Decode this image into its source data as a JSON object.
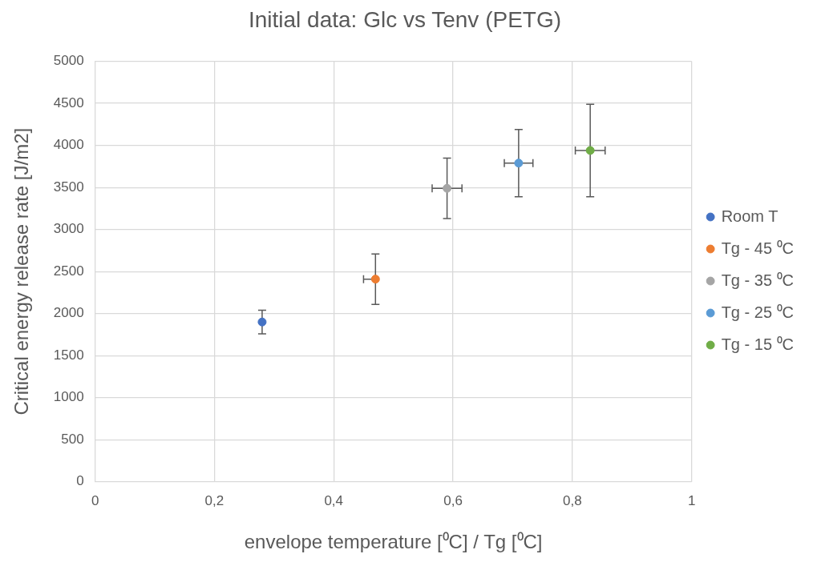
{
  "chart_data": {
    "type": "scatter",
    "title": "Initial data: Glc vs Tenv (PETG)",
    "xlabel": "envelope temperature [⁰C] / Tg [⁰C]",
    "ylabel": "Critical energy release rate [J/m2]",
    "series": [
      {
        "name": "Room T",
        "color": "#4472c4",
        "x": [
          0.28
        ],
        "values": [
          1900
        ],
        "errors": [
          140
        ]
      },
      {
        "name": "Tg - 45 ⁰C",
        "color": "#ed7d31",
        "x": [
          0.47
        ],
        "values": [
          2410
        ],
        "errors": [
          300
        ],
        "xerrors": [
          [
            0.45,
            0.47
          ]
        ]
      },
      {
        "name": "Tg - 35 ⁰C",
        "color": "#a5a5a5",
        "x": [
          0.59
        ],
        "values": [
          3490
        ],
        "errors": [
          360
        ],
        "xerrors": [
          0.025
        ]
      },
      {
        "name": "Tg - 25 ⁰C",
        "color": "#5b9bd5",
        "x": [
          0.71
        ],
        "values": [
          3790
        ],
        "errors": [
          400
        ],
        "xerrors": [
          0.024
        ]
      },
      {
        "name": "Tg - 15 ⁰C",
        "color": "#70ad47",
        "x": [
          0.83
        ],
        "values": [
          3940
        ],
        "errors": [
          550
        ],
        "xerrors": [
          0.025
        ]
      }
    ],
    "xlim": [
      0,
      1
    ],
    "xticks": [
      0,
      {
        "value": 0.2,
        "label": "0,2"
      },
      {
        "value": 0.4,
        "label": "0,4"
      },
      {
        "value": 0.6,
        "label": "0,6"
      },
      {
        "value": 0.8,
        "label": "0,8"
      },
      1
    ],
    "ylim": [
      0,
      5000
    ],
    "yticks": [
      0,
      500,
      1000,
      1500,
      2000,
      2500,
      3000,
      3500,
      4000,
      4500,
      5000
    ],
    "grid": true,
    "legend": "right",
    "marker": "circle"
  }
}
